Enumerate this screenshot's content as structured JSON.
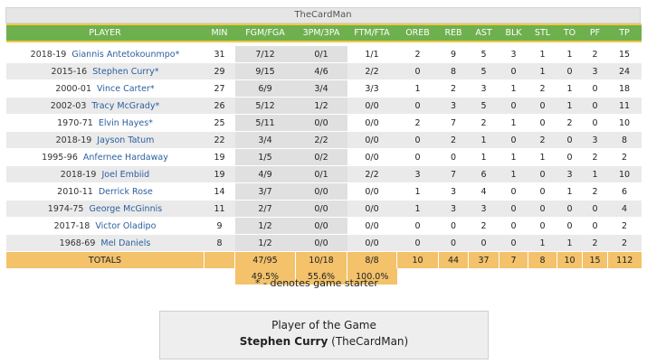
{
  "team": "TheCardMan",
  "columns": [
    "PLAYER",
    "MIN",
    "FGM/FGA",
    "3PM/3PA",
    "FTM/FTA",
    "OREB",
    "REB",
    "AST",
    "BLK",
    "STL",
    "TO",
    "PF",
    "TP"
  ],
  "players": [
    {
      "season": "2018-19",
      "name": "Giannis Antetokounmpo*",
      "min": "31",
      "fg": "7/12",
      "tp3": "0/1",
      "ft": "1/1",
      "oreb": "2",
      "reb": "9",
      "ast": "5",
      "blk": "3",
      "stl": "1",
      "to": "1",
      "pf": "2",
      "tp": "15"
    },
    {
      "season": "2015-16",
      "name": "Stephen Curry*",
      "min": "29",
      "fg": "9/15",
      "tp3": "4/6",
      "ft": "2/2",
      "oreb": "0",
      "reb": "8",
      "ast": "5",
      "blk": "0",
      "stl": "1",
      "to": "0",
      "pf": "3",
      "tp": "24"
    },
    {
      "season": "2000-01",
      "name": "Vince Carter*",
      "min": "27",
      "fg": "6/9",
      "tp3": "3/4",
      "ft": "3/3",
      "oreb": "1",
      "reb": "2",
      "ast": "3",
      "blk": "1",
      "stl": "2",
      "to": "1",
      "pf": "0",
      "tp": "18"
    },
    {
      "season": "2002-03",
      "name": "Tracy McGrady*",
      "min": "26",
      "fg": "5/12",
      "tp3": "1/2",
      "ft": "0/0",
      "oreb": "0",
      "reb": "3",
      "ast": "5",
      "blk": "0",
      "stl": "0",
      "to": "1",
      "pf": "0",
      "tp": "11"
    },
    {
      "season": "1970-71",
      "name": "Elvin Hayes*",
      "min": "25",
      "fg": "5/11",
      "tp3": "0/0",
      "ft": "0/0",
      "oreb": "2",
      "reb": "7",
      "ast": "2",
      "blk": "1",
      "stl": "0",
      "to": "2",
      "pf": "0",
      "tp": "10"
    },
    {
      "season": "2018-19",
      "name": "Jayson Tatum",
      "min": "22",
      "fg": "3/4",
      "tp3": "2/2",
      "ft": "0/0",
      "oreb": "0",
      "reb": "2",
      "ast": "1",
      "blk": "0",
      "stl": "2",
      "to": "0",
      "pf": "3",
      "tp": "8"
    },
    {
      "season": "1995-96",
      "name": "Anfernee Hardaway",
      "min": "19",
      "fg": "1/5",
      "tp3": "0/2",
      "ft": "0/0",
      "oreb": "0",
      "reb": "0",
      "ast": "1",
      "blk": "1",
      "stl": "1",
      "to": "0",
      "pf": "2",
      "tp": "2"
    },
    {
      "season": "2018-19",
      "name": "Joel Embiid",
      "min": "19",
      "fg": "4/9",
      "tp3": "0/1",
      "ft": "2/2",
      "oreb": "3",
      "reb": "7",
      "ast": "6",
      "blk": "1",
      "stl": "0",
      "to": "3",
      "pf": "1",
      "tp": "10"
    },
    {
      "season": "2010-11",
      "name": "Derrick Rose",
      "min": "14",
      "fg": "3/7",
      "tp3": "0/0",
      "ft": "0/0",
      "oreb": "1",
      "reb": "3",
      "ast": "4",
      "blk": "0",
      "stl": "0",
      "to": "1",
      "pf": "2",
      "tp": "6"
    },
    {
      "season": "1974-75",
      "name": "George McGinnis",
      "min": "11",
      "fg": "2/7",
      "tp3": "0/0",
      "ft": "0/0",
      "oreb": "1",
      "reb": "3",
      "ast": "3",
      "blk": "0",
      "stl": "0",
      "to": "0",
      "pf": "0",
      "tp": "4"
    },
    {
      "season": "2017-18",
      "name": "Victor Oladipo",
      "min": "9",
      "fg": "1/2",
      "tp3": "0/0",
      "ft": "0/0",
      "oreb": "0",
      "reb": "0",
      "ast": "2",
      "blk": "0",
      "stl": "0",
      "to": "0",
      "pf": "0",
      "tp": "2"
    },
    {
      "season": "1968-69",
      "name": "Mel Daniels",
      "min": "8",
      "fg": "1/2",
      "tp3": "0/0",
      "ft": "0/0",
      "oreb": "0",
      "reb": "0",
      "ast": "0",
      "blk": "0",
      "stl": "1",
      "to": "1",
      "pf": "2",
      "tp": "2"
    }
  ],
  "totals": {
    "label": "TOTALS",
    "fg": "47/95",
    "tp3": "10/18",
    "ft": "8/8",
    "oreb": "10",
    "reb": "44",
    "ast": "37",
    "blk": "7",
    "stl": "8",
    "to": "10",
    "pf": "15",
    "tp": "112"
  },
  "percentages": {
    "fg": "49.5%",
    "tp3": "55.6%",
    "ft": "100.0%"
  },
  "legend": "* - denotes game starter",
  "player_of_game": {
    "heading": "Player of the Game",
    "name": "Stephen Curry",
    "team": "(TheCardMan)"
  },
  "colors": {
    "header_green": "#6eb04e",
    "header_stripe": "#f0c84a",
    "totals_orange": "#f3c26b",
    "link_blue": "#2c5fa0"
  }
}
